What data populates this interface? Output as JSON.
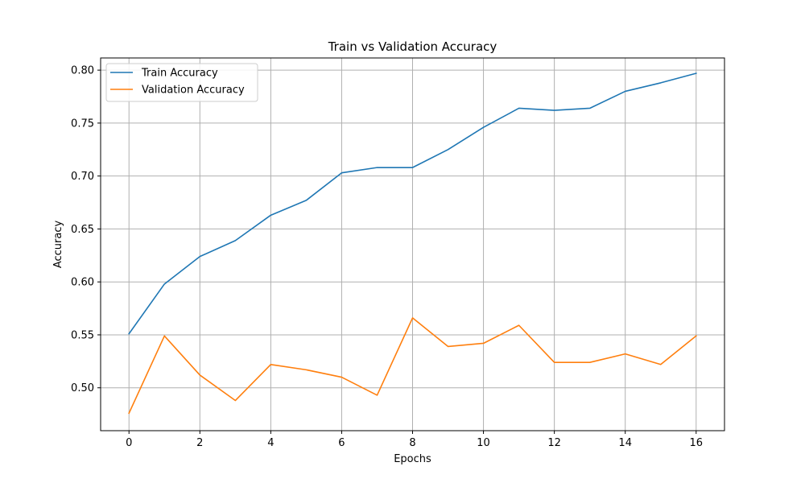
{
  "chart_data": {
    "type": "line",
    "title": "Train vs Validation Accuracy",
    "xlabel": "Epochs",
    "ylabel": "Accuracy",
    "xlim": [
      -0.8,
      16.8
    ],
    "ylim": [
      0.4595,
      0.8115
    ],
    "xticks": [
      0,
      2,
      4,
      6,
      8,
      10,
      12,
      14,
      16
    ],
    "yticks": [
      0.5,
      0.55,
      0.6,
      0.65,
      0.7,
      0.75,
      0.8
    ],
    "ytick_labels": [
      "0.50",
      "0.55",
      "0.60",
      "0.65",
      "0.70",
      "0.75",
      "0.80"
    ],
    "grid": true,
    "legend_position": "top-left",
    "x": [
      0,
      1,
      2,
      3,
      4,
      5,
      6,
      7,
      8,
      9,
      10,
      11,
      12,
      13,
      14,
      15,
      16
    ],
    "series": [
      {
        "name": "Train Accuracy",
        "color": "#1f77b4",
        "values": [
          0.551,
          0.598,
          0.624,
          0.639,
          0.663,
          0.677,
          0.703,
          0.708,
          0.708,
          0.725,
          0.746,
          0.764,
          0.762,
          0.764,
          0.78,
          0.788,
          0.797
        ]
      },
      {
        "name": "Validation Accuracy",
        "color": "#ff7f0e",
        "values": [
          0.476,
          0.549,
          0.512,
          0.488,
          0.522,
          0.517,
          0.51,
          0.493,
          0.566,
          0.539,
          0.542,
          0.559,
          0.524,
          0.524,
          0.532,
          0.522,
          0.549
        ]
      }
    ]
  }
}
